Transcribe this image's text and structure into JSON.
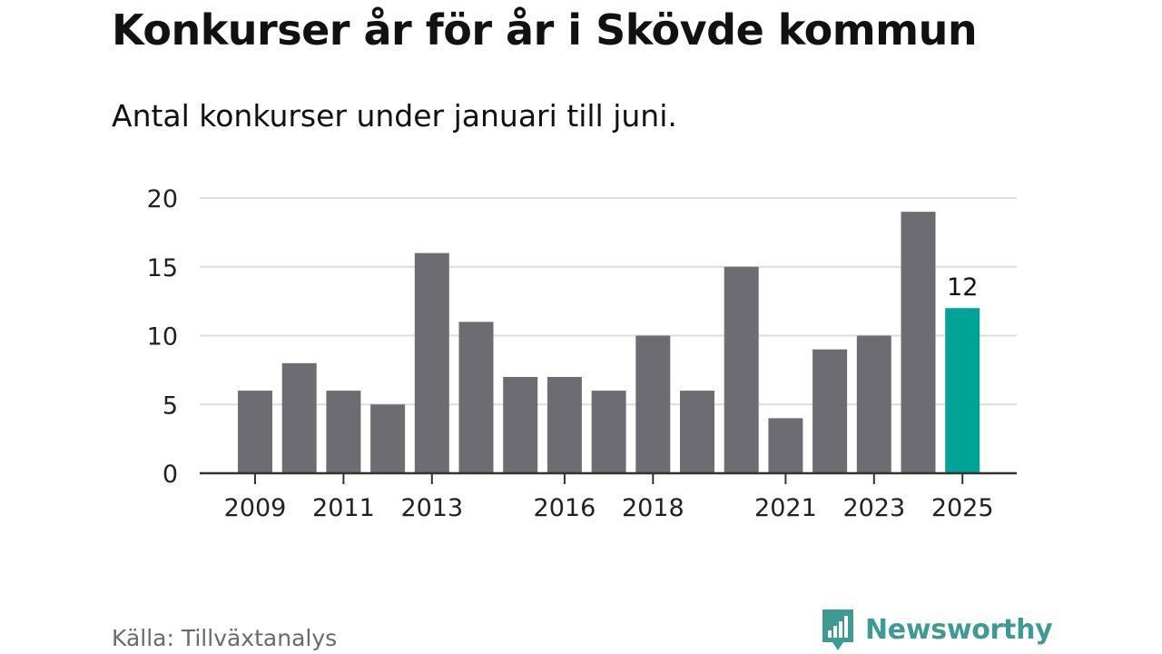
{
  "header": {
    "title": "Konkurser år för år i Skövde kommun",
    "subtitle": "Antal konkurser under januari till juni."
  },
  "footer": {
    "source": "Källa: Tillväxtanalys",
    "brand": "Newsworthy",
    "brand_icon": "bar-chart-speech-bubble-icon",
    "brand_color": "#3d9b94"
  },
  "colors": {
    "bar_default": "#6d6c72",
    "bar_highlight": "#00a497",
    "grid": "#dddddd",
    "axis": "#333333",
    "text": "#222222"
  },
  "chart_data": {
    "type": "bar",
    "categories": [
      "2009",
      "2010",
      "2011",
      "2012",
      "2013",
      "2014",
      "2015",
      "2016",
      "2017",
      "2018",
      "2019",
      "2020",
      "2021",
      "2022",
      "2023",
      "2024",
      "2025"
    ],
    "values": [
      6,
      8,
      6,
      5,
      16,
      11,
      7,
      7,
      6,
      10,
      6,
      15,
      4,
      9,
      10,
      19,
      12
    ],
    "tick_labels": [
      "2009",
      "2011",
      "2013",
      "2016",
      "2018",
      "2021",
      "2023",
      "2025"
    ],
    "highlight": "2025",
    "highlight_label": "12",
    "ylim": [
      0,
      20
    ],
    "yticks": [
      0,
      5,
      10,
      15,
      20
    ],
    "grid": true,
    "title": "Konkurser år för år i Skövde kommun",
    "xlabel": "",
    "ylabel": ""
  }
}
